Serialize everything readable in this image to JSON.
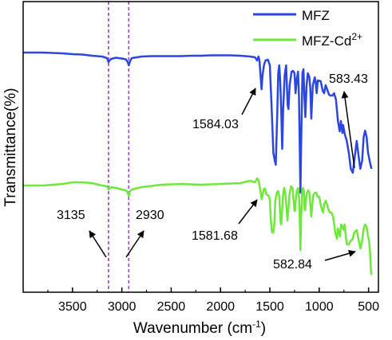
{
  "chart_data": {
    "type": "line",
    "title": "",
    "xlabel": "Wavenumber (cm",
    "xlabel_sup": "-1",
    "xlabel_suffix": ")",
    "ylabel": "Transmittance(%)",
    "xlim": [
      4000,
      400
    ],
    "x_reversed": true,
    "xticks": [
      3500,
      3000,
      2500,
      2000,
      1500,
      1000,
      500
    ],
    "yticks": [],
    "grid": false,
    "legend_position": "top-right",
    "series": [
      {
        "name": "MFZ",
        "color": "#2b47e0",
        "points": [
          [
            4000,
            64
          ],
          [
            3900,
            64
          ],
          [
            3800,
            64
          ],
          [
            3700,
            64.5
          ],
          [
            3600,
            65
          ],
          [
            3500,
            66
          ],
          [
            3400,
            66.5
          ],
          [
            3300,
            68
          ],
          [
            3200,
            69
          ],
          [
            3150,
            71
          ],
          [
            3135,
            76
          ],
          [
            3110,
            72
          ],
          [
            3060,
            70.5
          ],
          [
            3000,
            71.5
          ],
          [
            2960,
            72.5
          ],
          [
            2940,
            76
          ],
          [
            2930,
            80
          ],
          [
            2920,
            76
          ],
          [
            2900,
            71
          ],
          [
            2850,
            70
          ],
          [
            2800,
            69
          ],
          [
            2700,
            68.5
          ],
          [
            2600,
            68.5
          ],
          [
            2500,
            68.5
          ],
          [
            2400,
            68.5
          ],
          [
            2300,
            68
          ],
          [
            2200,
            68
          ],
          [
            2100,
            67.5
          ],
          [
            2000,
            67.5
          ],
          [
            1900,
            67.5
          ],
          [
            1800,
            68
          ],
          [
            1700,
            69
          ],
          [
            1650,
            70
          ],
          [
            1630,
            74
          ],
          [
            1615,
            69
          ],
          [
            1605,
            74
          ],
          [
            1584.03,
            110
          ],
          [
            1575,
            93
          ],
          [
            1560,
            80
          ],
          [
            1545,
            74
          ],
          [
            1520,
            73
          ],
          [
            1500,
            80
          ],
          [
            1480,
            140
          ],
          [
            1465,
            190
          ],
          [
            1450,
            200
          ],
          [
            1440,
            205
          ],
          [
            1425,
            140
          ],
          [
            1415,
            90
          ],
          [
            1405,
            80
          ],
          [
            1395,
            100
          ],
          [
            1385,
            135
          ],
          [
            1375,
            185
          ],
          [
            1365,
            135
          ],
          [
            1350,
            92
          ],
          [
            1335,
            80
          ],
          [
            1320,
            130
          ],
          [
            1312,
            135
          ],
          [
            1300,
            105
          ],
          [
            1280,
            88
          ],
          [
            1265,
            87
          ],
          [
            1250,
            90
          ],
          [
            1240,
            115
          ],
          [
            1228,
            98
          ],
          [
            1215,
            88
          ],
          [
            1205,
            120
          ],
          [
            1198,
            180
          ],
          [
            1190,
            240
          ],
          [
            1183,
            180
          ],
          [
            1170,
            90
          ],
          [
            1160,
            85
          ],
          [
            1150,
            120
          ],
          [
            1140,
            145
          ],
          [
            1128,
            105
          ],
          [
            1115,
            90
          ],
          [
            1100,
            95
          ],
          [
            1090,
            110
          ],
          [
            1080,
            147
          ],
          [
            1065,
            105
          ],
          [
            1045,
            95
          ],
          [
            1035,
            103
          ],
          [
            1025,
            115
          ],
          [
            1015,
            99
          ],
          [
            985,
            100
          ],
          [
            965,
            112
          ],
          [
            950,
            115
          ],
          [
            935,
            105
          ],
          [
            920,
            110
          ],
          [
            900,
            117
          ],
          [
            885,
            118
          ],
          [
            865,
            118
          ],
          [
            850,
            115
          ],
          [
            830,
            123
          ],
          [
            810,
            150
          ],
          [
            792,
            163
          ],
          [
            780,
            150
          ],
          [
            765,
            165
          ],
          [
            758,
            155
          ],
          [
            740,
            167
          ],
          [
            720,
            175
          ],
          [
            700,
            190
          ],
          [
            680,
            210
          ],
          [
            660,
            215
          ],
          [
            645,
            200
          ],
          [
            620,
            175
          ],
          [
            600,
            195
          ],
          [
            583.43,
            210
          ],
          [
            565,
            200
          ],
          [
            550,
            170
          ],
          [
            535,
            162
          ],
          [
            520,
            170
          ],
          [
            505,
            190
          ],
          [
            480,
            205
          ],
          [
            470,
            210
          ]
        ]
      },
      {
        "name": "MFZ-Cd",
        "name_sup": "2+",
        "color": "#6ee83a",
        "points": [
          [
            4000,
            231
          ],
          [
            3900,
            231
          ],
          [
            3800,
            231
          ],
          [
            3700,
            230
          ],
          [
            3600,
            229
          ],
          [
            3500,
            227
          ],
          [
            3400,
            227
          ],
          [
            3300,
            228
          ],
          [
            3200,
            231
          ],
          [
            3150,
            232
          ],
          [
            3135,
            236
          ],
          [
            3110,
            233
          ],
          [
            3060,
            234
          ],
          [
            3000,
            236
          ],
          [
            2960,
            237
          ],
          [
            2940,
            240
          ],
          [
            2930,
            244
          ],
          [
            2920,
            239
          ],
          [
            2900,
            236
          ],
          [
            2800,
            233
          ],
          [
            2600,
            230
          ],
          [
            2400,
            229
          ],
          [
            2200,
            230
          ],
          [
            2000,
            229
          ],
          [
            1800,
            228
          ],
          [
            1700,
            225
          ],
          [
            1650,
            227
          ],
          [
            1630,
            222
          ],
          [
            1615,
            224
          ],
          [
            1581.68,
            248
          ],
          [
            1570,
            240
          ],
          [
            1560,
            235
          ],
          [
            1548,
            235
          ],
          [
            1535,
            242
          ],
          [
            1510,
            244
          ],
          [
            1500,
            250
          ],
          [
            1490,
            275
          ],
          [
            1478,
            290
          ],
          [
            1465,
            290
          ],
          [
            1455,
            280
          ],
          [
            1445,
            250
          ],
          [
            1430,
            240
          ],
          [
            1415,
            238
          ],
          [
            1405,
            245
          ],
          [
            1393,
            275
          ],
          [
            1385,
            280
          ],
          [
            1375,
            260
          ],
          [
            1365,
            240
          ],
          [
            1355,
            234
          ],
          [
            1345,
            240
          ],
          [
            1330,
            260
          ],
          [
            1322,
            275
          ],
          [
            1312,
            260
          ],
          [
            1300,
            240
          ],
          [
            1285,
            232
          ],
          [
            1270,
            234
          ],
          [
            1260,
            250
          ],
          [
            1250,
            263
          ],
          [
            1245,
            263
          ],
          [
            1238,
            250
          ],
          [
            1228,
            238
          ],
          [
            1215,
            234
          ],
          [
            1205,
            245
          ],
          [
            1198,
            270
          ],
          [
            1190,
            312
          ],
          [
            1183,
            270
          ],
          [
            1173,
            240
          ],
          [
            1165,
            234
          ],
          [
            1155,
            238
          ],
          [
            1148,
            260
          ],
          [
            1142,
            262
          ],
          [
            1135,
            250
          ],
          [
            1125,
            240
          ],
          [
            1110,
            237
          ],
          [
            1100,
            240
          ],
          [
            1090,
            255
          ],
          [
            1080,
            270
          ],
          [
            1070,
            255
          ],
          [
            1060,
            243
          ],
          [
            1045,
            240
          ],
          [
            1030,
            240
          ],
          [
            1015,
            245
          ],
          [
            1000,
            245
          ],
          [
            985,
            255
          ],
          [
            970,
            262
          ],
          [
            960,
            265
          ],
          [
            950,
            255
          ],
          [
            935,
            250
          ],
          [
            920,
            255
          ],
          [
            905,
            262
          ],
          [
            890,
            265
          ],
          [
            875,
            265
          ],
          [
            860,
            270
          ],
          [
            850,
            278
          ],
          [
            838,
            290
          ],
          [
            820,
            298
          ],
          [
            810,
            285
          ],
          [
            800,
            290
          ],
          [
            790,
            295
          ],
          [
            778,
            280
          ],
          [
            765,
            282
          ],
          [
            752,
            287
          ],
          [
            742,
            280
          ],
          [
            730,
            295
          ],
          [
            720,
            305
          ],
          [
            700,
            305
          ],
          [
            680,
            300
          ],
          [
            660,
            298
          ],
          [
            645,
            290
          ],
          [
            620,
            287
          ],
          [
            600,
            300
          ],
          [
            582.84,
            310
          ],
          [
            565,
            300
          ],
          [
            550,
            285
          ],
          [
            535,
            280
          ],
          [
            520,
            283
          ],
          [
            505,
            295
          ],
          [
            495,
            300
          ],
          [
            485,
            315
          ],
          [
            475,
            340
          ],
          [
            470,
            343
          ]
        ]
      }
    ],
    "reference_lines": [
      {
        "x": 3135,
        "color": "#b04be8"
      },
      {
        "x": 2930,
        "color": "#b04be8"
      }
    ],
    "annotations": [
      {
        "text": "1584.03",
        "target_x": 1584.03
      },
      {
        "text": "583.43",
        "target_x": 583.43
      },
      {
        "text": "3135",
        "target_x": 3135
      },
      {
        "text": "2930",
        "target_x": 2930
      },
      {
        "text": "1581.68",
        "target_x": 1581.68
      },
      {
        "text": "582.84",
        "target_x": 582.84
      }
    ]
  }
}
